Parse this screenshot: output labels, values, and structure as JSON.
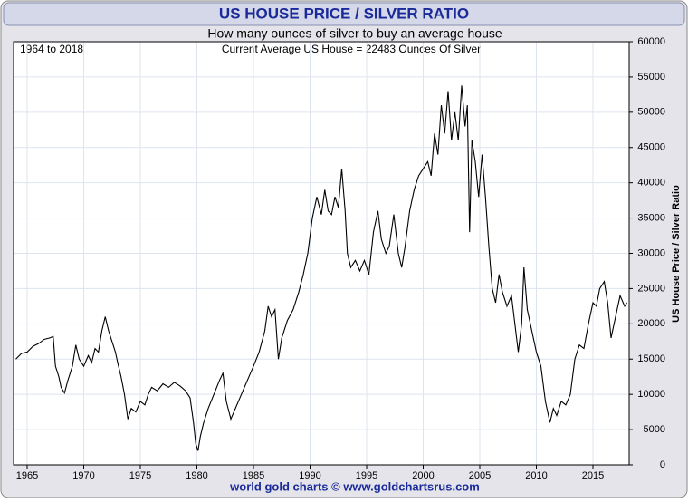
{
  "chart_data": {
    "type": "line",
    "title": "US HOUSE PRICE / SILVER RATIO",
    "subtitle": "How many ounces of silver to buy an average house",
    "annotations": [
      "1964 to 2018",
      "Current Average US House = 22483 Ounces Of Silver"
    ],
    "y_label": "US House Price / Silver Ratio",
    "footer": "world gold charts © www.goldchartsrus.com",
    "xlim": [
      1963.8,
      2018.2
    ],
    "xticks": [
      1965,
      1970,
      1975,
      1980,
      1985,
      1990,
      1995,
      2000,
      2005,
      2010,
      2015
    ],
    "ylim": [
      0,
      60000
    ],
    "yticks": [
      0,
      5000,
      10000,
      15000,
      20000,
      25000,
      30000,
      35000,
      40000,
      45000,
      50000,
      55000,
      60000
    ],
    "grid": true,
    "y_axis_side": "right",
    "series": [
      {
        "color": "#000000",
        "x": [
          1964.0,
          1964.5,
          1965,
          1965.5,
          1966,
          1966.5,
          1967,
          1967.3,
          1967.5,
          1967.8,
          1968.0,
          1968.3,
          1968.6,
          1969,
          1969.3,
          1969.6,
          1970,
          1970.4,
          1970.7,
          1971,
          1971.3,
          1971.6,
          1971.9,
          1972.2,
          1972.5,
          1972.8,
          1973.0,
          1973.3,
          1973.6,
          1973.9,
          1974.2,
          1974.6,
          1975,
          1975.4,
          1975.7,
          1976.0,
          1976.5,
          1977,
          1977.5,
          1978,
          1978.5,
          1979,
          1979.4,
          1979.7,
          1979.9,
          1980.1,
          1980.3,
          1980.6,
          1981,
          1981.5,
          1982,
          1982.3,
          1982.6,
          1983,
          1983.4,
          1983.8,
          1984.2,
          1984.6,
          1985,
          1985.5,
          1986,
          1986.3,
          1986.6,
          1986.9,
          1987.2,
          1987.5,
          1988,
          1988.5,
          1989,
          1989.4,
          1989.8,
          1990.2,
          1990.6,
          1991.0,
          1991.3,
          1991.6,
          1991.9,
          1992.2,
          1992.5,
          1992.8,
          1993.1,
          1993.3,
          1993.6,
          1994,
          1994.4,
          1994.8,
          1995.2,
          1995.6,
          1996,
          1996.3,
          1996.7,
          1997,
          1997.4,
          1997.8,
          1998.1,
          1998.4,
          1998.8,
          1999.2,
          1999.6,
          2000,
          2000.4,
          2000.7,
          2001.0,
          2001.3,
          2001.6,
          2001.9,
          2002.2,
          2002.5,
          2002.8,
          2003.1,
          2003.4,
          2003.7,
          2003.9,
          2004.1,
          2004.3,
          2004.6,
          2004.9,
          2005.2,
          2005.5,
          2005.8,
          2006.1,
          2006.4,
          2006.7,
          2007,
          2007.4,
          2007.8,
          2008.1,
          2008.4,
          2008.7,
          2008.9,
          2009.2,
          2009.6,
          2010,
          2010.4,
          2010.8,
          2011.2,
          2011.5,
          2011.8,
          2012.2,
          2012.6,
          2013,
          2013.4,
          2013.8,
          2014.2,
          2014.6,
          2015,
          2015.3,
          2015.6,
          2016,
          2016.3,
          2016.6,
          2017,
          2017.4,
          2017.8,
          2018.0
        ],
        "values": [
          15000,
          15800,
          16000,
          16800,
          17200,
          17800,
          18000,
          18200,
          14000,
          12500,
          11000,
          10200,
          12000,
          14000,
          17000,
          15000,
          14000,
          15500,
          14500,
          16500,
          16000,
          19000,
          21000,
          19000,
          17500,
          16000,
          14500,
          12500,
          10000,
          6500,
          8000,
          7500,
          9000,
          8500,
          10000,
          11000,
          10500,
          11500,
          11000,
          11700,
          11200,
          10500,
          9500,
          6000,
          3000,
          2000,
          4000,
          6000,
          8000,
          10000,
          12000,
          13000,
          9000,
          6500,
          8000,
          9500,
          11000,
          12500,
          14000,
          16000,
          19000,
          22500,
          21000,
          22000,
          15000,
          18000,
          20500,
          22000,
          24500,
          27000,
          30000,
          35000,
          38000,
          35500,
          39000,
          36000,
          35500,
          38000,
          36500,
          42000,
          36000,
          30000,
          28000,
          29000,
          27500,
          29000,
          27000,
          33000,
          36000,
          32000,
          30000,
          31000,
          35500,
          30000,
          28000,
          31000,
          36000,
          39000,
          41000,
          42000,
          43000,
          41000,
          47000,
          44000,
          51000,
          47000,
          53000,
          46000,
          50000,
          46000,
          53800,
          48000,
          51000,
          33000,
          46000,
          43000,
          38000,
          44000,
          38000,
          31000,
          25000,
          23000,
          27000,
          24500,
          22500,
          24000,
          20000,
          16000,
          20000,
          28000,
          22000,
          19000,
          16000,
          14000,
          9000,
          6000,
          8000,
          7000,
          9000,
          8500,
          10000,
          15000,
          17000,
          16500,
          20000,
          23000,
          22500,
          25000,
          26000,
          23000,
          18000,
          21000,
          24000,
          22500,
          23000
        ]
      }
    ]
  }
}
